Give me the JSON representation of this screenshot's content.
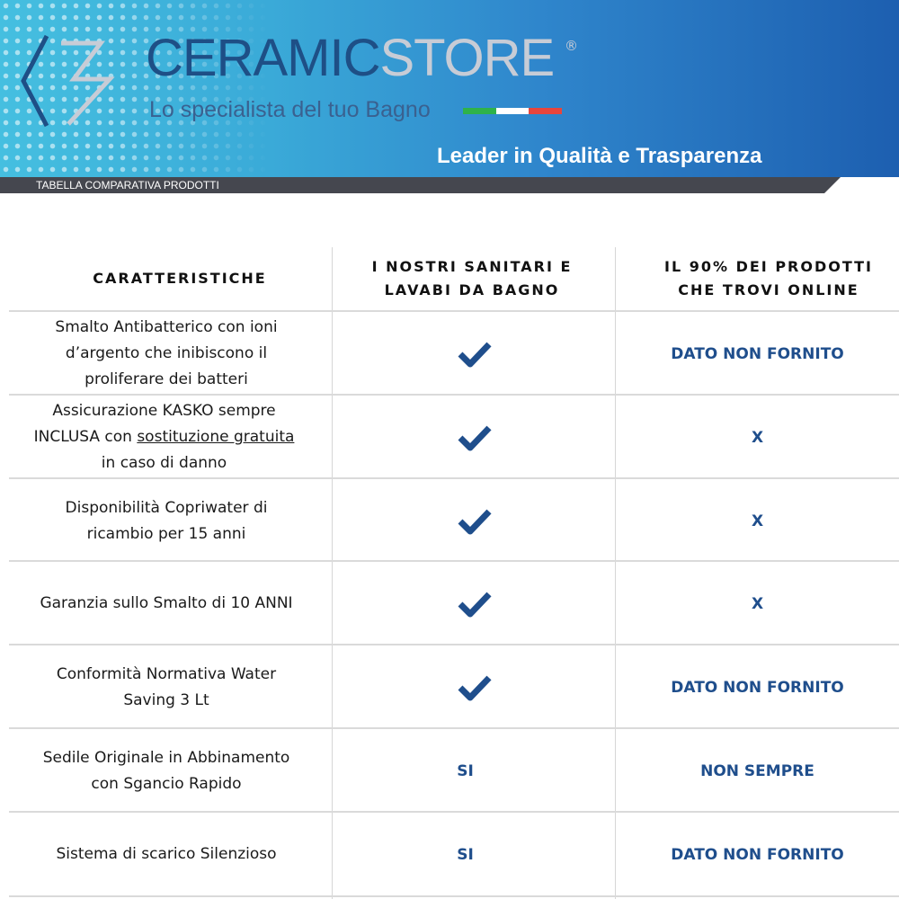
{
  "banner": {
    "brand_part1": "CERAMIC",
    "brand_part2": "STORE",
    "registered": "®",
    "tagline": "Lo specialista del tuo Bagno",
    "slogan": "Leader in Qualità e Trasparenza",
    "section_label": "TABELLA COMPARATIVA PRODOTTI",
    "flag_colors": [
      "#2fb24a",
      "#ffffff",
      "#e8453c"
    ]
  },
  "colors": {
    "accent": "#1f4e8c",
    "brand_dark": "#1e4f86"
  },
  "table": {
    "headers": [
      "CARATTERISTICHE",
      "I NOSTRI SANITARI E LAVABI DA BAGNO",
      "IL 90% DEI PRODOTTI CHE TROVI ONLINE"
    ],
    "rows": [
      {
        "feature": "Smalto Antibatterico con ioni d’argento che inibiscono il proliferare dei batteri",
        "ours_icon": "checkmark-icon",
        "ours": "",
        "online": "DATO NON FORNITO"
      },
      {
        "feature_a": "Assicurazione KASKO sempre INCLUSA con ",
        "feature_u": "sostituzione gratuita ",
        "feature_b": " in caso di danno",
        "ours_icon": "checkmark-icon",
        "ours": "",
        "online": "X"
      },
      {
        "feature": "Disponibilità Copriwater di ricambio per 15 anni",
        "ours_icon": "checkmark-icon",
        "ours": "",
        "online": "X"
      },
      {
        "feature": "Garanzia sullo Smalto di 10 ANNI",
        "ours_icon": "checkmark-icon",
        "ours": "",
        "online": "X"
      },
      {
        "feature": "Conformità Normativa Water Saving 3 Lt",
        "ours_icon": "checkmark-icon",
        "ours": "",
        "online": "DATO NON FORNITO"
      },
      {
        "feature": "Sedile Originale in Abbinamento con Sgancio Rapido",
        "ours": "SI",
        "online": "NON SEMPRE"
      },
      {
        "feature": "Sistema di scarico Silenzioso",
        "ours": "SI",
        "online": "DATO NON FORNITO"
      }
    ]
  }
}
